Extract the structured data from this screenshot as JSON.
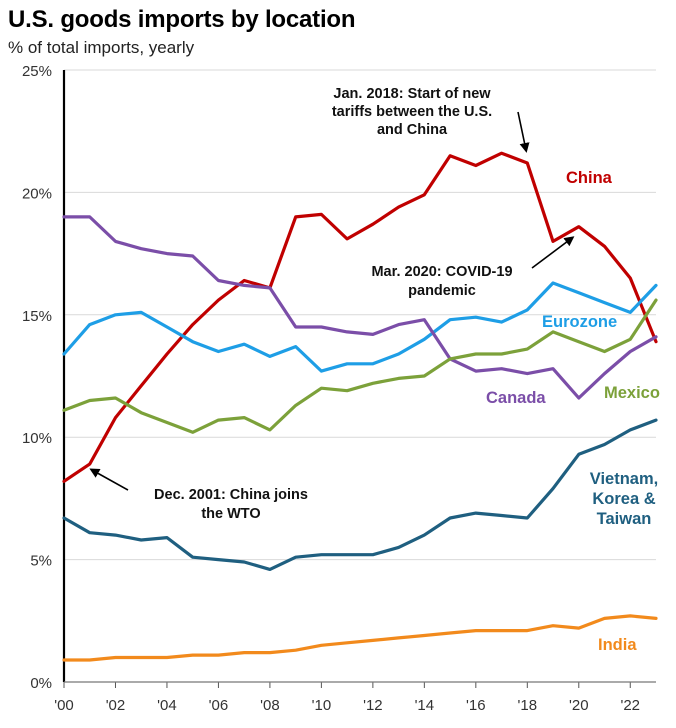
{
  "chart_data": {
    "type": "line",
    "title": "U.S. goods imports by location",
    "subtitle": "% of total imports, yearly",
    "x_tick_labels": [
      "'00",
      "'02",
      "'04",
      "'06",
      "'08",
      "'10",
      "'12",
      "'14",
      "'16",
      "'18",
      "'20",
      "'22"
    ],
    "x_tick_years": [
      2000,
      2002,
      2004,
      2006,
      2008,
      2010,
      2012,
      2014,
      2016,
      2018,
      2020,
      2022
    ],
    "y_tick_labels": [
      "0%",
      "5%",
      "10%",
      "15%",
      "20%",
      "25%"
    ],
    "y_tick_values": [
      0,
      5,
      10,
      15,
      20,
      25
    ],
    "xlim": [
      2000,
      2023
    ],
    "ylim": [
      0,
      25
    ],
    "grid": true,
    "x": [
      2000,
      2001,
      2002,
      2003,
      2004,
      2005,
      2006,
      2007,
      2008,
      2009,
      2010,
      2011,
      2012,
      2013,
      2014,
      2015,
      2016,
      2017,
      2018,
      2019,
      2020,
      2021,
      2022,
      2023
    ],
    "series": [
      {
        "name": "China",
        "color": "#c00000",
        "values": [
          8.2,
          8.9,
          10.8,
          12.1,
          13.4,
          14.6,
          15.6,
          16.4,
          16.1,
          19.0,
          19.1,
          18.1,
          18.7,
          19.4,
          19.9,
          21.5,
          21.1,
          21.6,
          21.2,
          18.0,
          18.6,
          17.8,
          16.5,
          13.9
        ]
      },
      {
        "name": "Eurozone",
        "color": "#1e9ee6",
        "values": [
          13.4,
          14.6,
          15.0,
          15.1,
          14.5,
          13.9,
          13.5,
          13.8,
          13.3,
          13.7,
          12.7,
          13.0,
          13.0,
          13.4,
          14.0,
          14.8,
          14.9,
          14.7,
          15.2,
          16.3,
          15.9,
          15.5,
          15.1,
          16.2
        ]
      },
      {
        "name": "Canada",
        "color": "#7b4ea8",
        "values": [
          19.0,
          19.0,
          18.0,
          17.7,
          17.5,
          17.4,
          16.4,
          16.2,
          16.1,
          14.5,
          14.5,
          14.3,
          14.2,
          14.6,
          14.8,
          13.2,
          12.7,
          12.8,
          12.6,
          12.8,
          11.6,
          12.6,
          13.5,
          14.1
        ]
      },
      {
        "name": "Mexico",
        "color": "#7ca13a",
        "values": [
          11.1,
          11.5,
          11.6,
          11.0,
          10.6,
          10.2,
          10.7,
          10.8,
          10.3,
          11.3,
          12.0,
          11.9,
          12.2,
          12.4,
          12.5,
          13.2,
          13.4,
          13.4,
          13.6,
          14.3,
          13.9,
          13.5,
          14.0,
          15.6
        ]
      },
      {
        "name": "Vietnam, Korea & Taiwan",
        "color": "#1f5f80",
        "values": [
          6.7,
          6.1,
          6.0,
          5.8,
          5.9,
          5.1,
          5.0,
          4.9,
          4.6,
          5.1,
          5.2,
          5.2,
          5.2,
          5.5,
          6.0,
          6.7,
          6.9,
          6.8,
          6.7,
          7.9,
          9.3,
          9.7,
          10.3,
          10.7
        ]
      },
      {
        "name": "India",
        "color": "#f28a1c",
        "values": [
          0.9,
          0.9,
          1.0,
          1.0,
          1.0,
          1.1,
          1.1,
          1.2,
          1.2,
          1.3,
          1.5,
          1.6,
          1.7,
          1.8,
          1.9,
          2.0,
          2.1,
          2.1,
          2.1,
          2.3,
          2.2,
          2.6,
          2.7,
          2.6
        ]
      }
    ],
    "series_labels": {
      "China": [
        "China"
      ],
      "Eurozone": [
        "Eurozone"
      ],
      "Canada": [
        "Canada"
      ],
      "Mexico": [
        "Mexico"
      ],
      "Vietnam, Korea & Taiwan": [
        "Vietnam,",
        "Korea &",
        "Taiwan"
      ],
      "India": [
        "India"
      ]
    },
    "annotations": [
      {
        "id": "tariffs",
        "lines": [
          "Jan. 2018: Start of new",
          "tariffs between the U.S.",
          "and China"
        ]
      },
      {
        "id": "covid",
        "lines": [
          "Mar. 2020: COVID-19",
          "pandemic"
        ]
      },
      {
        "id": "wto",
        "lines": [
          "Dec. 2001: China joins",
          "the WTO"
        ]
      }
    ]
  }
}
